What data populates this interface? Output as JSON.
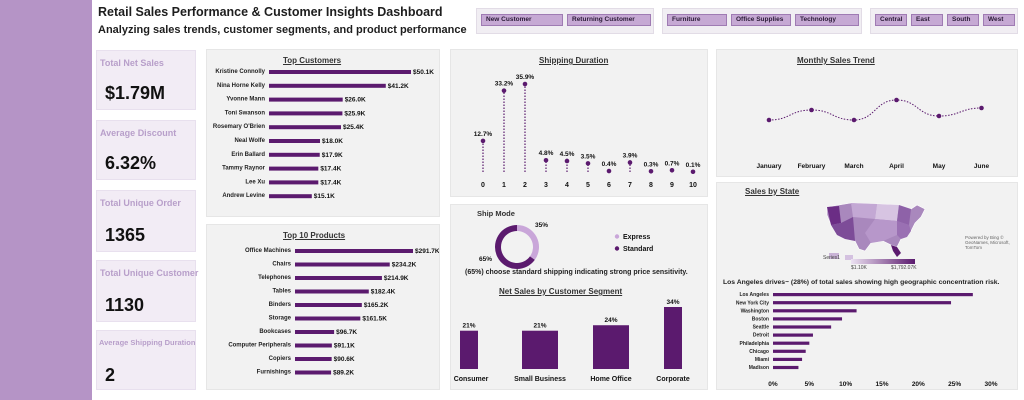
{
  "header": {
    "title": "Retail Sales Performance & Customer Insights Dashboard",
    "subtitle": "Analyzing sales trends, customer segments, and product performance"
  },
  "slicers": {
    "customer_type": [
      "New Customer",
      "Returning Customer"
    ],
    "category": [
      "Furniture",
      "Office Supplies",
      "Technology"
    ],
    "region": [
      "Central",
      "East",
      "South",
      "West"
    ]
  },
  "kpis": [
    {
      "label": "Total Net Sales",
      "value": "$1.79M"
    },
    {
      "label": "Average Discount",
      "value": "6.32%"
    },
    {
      "label": "Total Unique Order",
      "value": "1365"
    },
    {
      "label": "Total Unique Customer",
      "value": "1130"
    },
    {
      "label": "Average Shipping Duration",
      "value": "2"
    }
  ],
  "colors": {
    "accent": "#5b1a6e",
    "sidebar": "#b594c6",
    "panel": "#f2f2f2",
    "light_accent": "#c9a6d9"
  },
  "chart_data": [
    {
      "id": "top_customers",
      "type": "bar",
      "orientation": "horizontal",
      "title": "Top Customers",
      "categories": [
        "Kristine Connolly",
        "Nina Horne Kelly",
        "Yvonne Mann",
        "Toni Swanson",
        "Rosemary O'Brien",
        "Neal Wolfe",
        "Erin Ballard",
        "Tammy Raynor",
        "Lee Xu",
        "Andrew Levine"
      ],
      "values": [
        50.1,
        41.2,
        26.0,
        25.9,
        25.4,
        18.0,
        17.9,
        17.4,
        17.4,
        15.1
      ],
      "labels": [
        "$50.1K",
        "$41.2K",
        "$26.0K",
        "$25.9K",
        "$25.4K",
        "$18.0K",
        "$17.9K",
        "$17.4K",
        "$17.4K",
        "$15.1K"
      ]
    },
    {
      "id": "top_products",
      "type": "bar",
      "orientation": "horizontal",
      "title": "Top 10 Products",
      "categories": [
        "Office Machines",
        "Chairs",
        "Telephones",
        "Tables",
        "Binders",
        "Storage",
        "Bookcases",
        "Computer Peripherals",
        "Copiers",
        "Furnishings"
      ],
      "values": [
        291.7,
        234.2,
        214.9,
        182.4,
        165.2,
        161.5,
        96.7,
        91.1,
        90.6,
        89.2
      ],
      "labels": [
        "$291.7K",
        "$234.2K",
        "$214.9K",
        "$182.4K",
        "$165.2K",
        "$161.5K",
        "$96.7K",
        "$91.1K",
        "$90.6K",
        "$89.2K"
      ]
    },
    {
      "id": "shipping_duration",
      "type": "scatter",
      "title": "Shipping Duration",
      "x": [
        0,
        1,
        2,
        3,
        4,
        5,
        6,
        7,
        8,
        9,
        10
      ],
      "values": [
        12.7,
        33.2,
        35.9,
        4.8,
        4.5,
        3.5,
        0.4,
        3.9,
        0.3,
        0.7,
        0.1
      ],
      "labels": [
        "12.7%",
        "33.2%",
        "35.9%",
        "4.8%",
        "4.5%",
        "3.5%",
        "0.4%",
        "3.9%",
        "0.3%",
        "0.7%",
        "0.1%"
      ]
    },
    {
      "id": "monthly_sales",
      "type": "line",
      "title": "Monthly Sales Trend",
      "categories": [
        "January",
        "February",
        "March",
        "April",
        "May",
        "June"
      ],
      "values": [
        0.3,
        0.55,
        0.3,
        0.8,
        0.4,
        0.6
      ]
    },
    {
      "id": "ship_mode",
      "type": "pie",
      "title": "Ship Mode",
      "categories": [
        "Express",
        "Standard"
      ],
      "values": [
        35,
        65
      ],
      "labels": [
        "35%",
        "65%"
      ],
      "note": "(65%) choose standard shipping indicating strong price sensitivity."
    },
    {
      "id": "segment",
      "type": "bar",
      "title": "Net Sales by Customer Segment",
      "categories": [
        "Consumer",
        "Small Business",
        "Home Office",
        "Corporate"
      ],
      "values": [
        21,
        21,
        24,
        34
      ],
      "labels": [
        "21%",
        "21%",
        "24%",
        "34%"
      ]
    },
    {
      "id": "sales_by_state",
      "type": "bar",
      "orientation": "horizontal",
      "title": "Sales by State",
      "map_legend": {
        "series": "Series1",
        "min": "$1.10K",
        "max": "$1,792.07K"
      },
      "map_credit": "Powered by Bing © GeoNames, Microsoft, TomTom",
      "note": "Los Angeles drives~ (28%) of total sales showing high geographic concentration risk.",
      "categories": [
        "Los Angeles",
        "New York City",
        "Washington",
        "Boston",
        "Seattle",
        "Detroit",
        "Philadelphia",
        "Chicago",
        "Miami",
        "Madison"
      ],
      "values": [
        27.5,
        24.5,
        11.5,
        9.5,
        8.0,
        5.5,
        5.0,
        4.5,
        4.0,
        3.5
      ],
      "xticks": [
        "0%",
        "5%",
        "10%",
        "15%",
        "20%",
        "25%",
        "30%"
      ],
      "xlim": [
        0,
        30
      ]
    }
  ]
}
